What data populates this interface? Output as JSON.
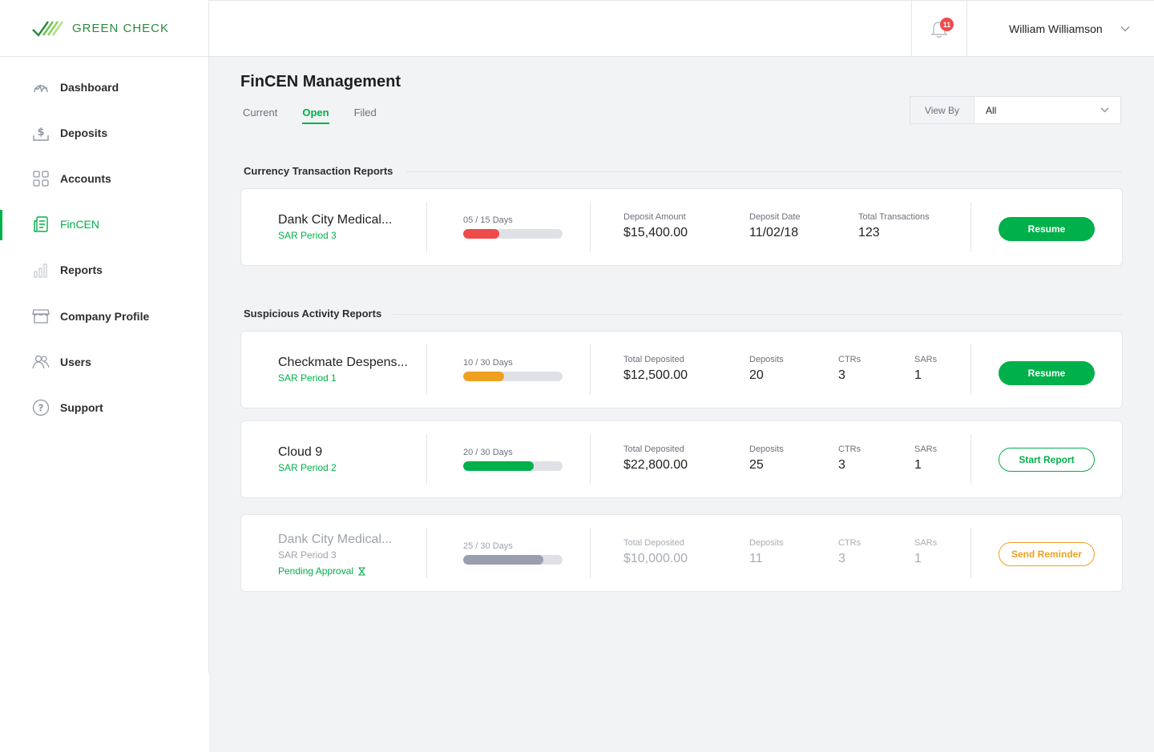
{
  "brand": {
    "name": "GREEN CHECK"
  },
  "sidebar": {
    "items": [
      {
        "label": "Dashboard",
        "icon": "dashboard-icon"
      },
      {
        "label": "Deposits",
        "icon": "deposits-icon"
      },
      {
        "label": "Accounts",
        "icon": "accounts-icon"
      },
      {
        "label": "FinCEN",
        "icon": "fincen-icon",
        "active": true
      },
      {
        "label": "Reports",
        "icon": "reports-icon"
      },
      {
        "label": "Company Profile",
        "icon": "store-icon"
      },
      {
        "label": "Users",
        "icon": "users-icon"
      },
      {
        "label": "Support",
        "icon": "support-icon"
      }
    ]
  },
  "header": {
    "notification_count": "11",
    "user_name": "William Williamson"
  },
  "page": {
    "title": "FinCEN Management",
    "tabs": [
      {
        "label": "Current"
      },
      {
        "label": "Open",
        "active": true
      },
      {
        "label": "Filed"
      }
    ],
    "view_by": {
      "label": "View By",
      "value": "All"
    }
  },
  "ctr": {
    "title": "Currency Transaction Reports",
    "cards": [
      {
        "name": "Dank City Medical...",
        "period": "SAR Period 3",
        "progress_label": "05 / 15 Days",
        "progress": 0.36,
        "bar_color": "#ef4b4b",
        "stats": [
          {
            "label": "Deposit Amount",
            "value": "$15,400.00"
          },
          {
            "label": "Deposit Date",
            "value": "11/02/18"
          },
          {
            "label": "Total Transactions",
            "value": "123"
          }
        ],
        "action": "Resume"
      }
    ]
  },
  "sar": {
    "title": "Suspicious Activity Reports",
    "cards": [
      {
        "name": "Checkmate Despens...",
        "period": "SAR Period 1",
        "progress_label": "10 / 30 Days",
        "progress": 0.41,
        "bar_color": "#f0a020",
        "stats": [
          {
            "label": "Total Deposited",
            "value": "$12,500.00"
          },
          {
            "label": "Deposits",
            "value": "20"
          },
          {
            "label": "CTRs",
            "value": "3"
          },
          {
            "label": "SARs",
            "value": "1"
          }
        ],
        "action": "Resume"
      },
      {
        "name": "Cloud 9",
        "period": "SAR Period 2",
        "progress_label": "20 / 30 Days",
        "progress": 0.71,
        "bar_color": "#00b04a",
        "stats": [
          {
            "label": "Total Deposited",
            "value": "$22,800.00"
          },
          {
            "label": "Deposits",
            "value": "25"
          },
          {
            "label": "CTRs",
            "value": "3"
          },
          {
            "label": "SARs",
            "value": "1"
          }
        ],
        "action": "Start Report"
      },
      {
        "name": "Dank City Medical...",
        "period": "SAR Period 3",
        "status": "Pending Approval",
        "progress_label": "25 / 30 Days",
        "progress": 0.81,
        "bar_color": "#9a9fb0",
        "stats": [
          {
            "label": "Total Deposited",
            "value": "$10,000.00"
          },
          {
            "label": "Deposits",
            "value": "11"
          },
          {
            "label": "CTRs",
            "value": "3"
          },
          {
            "label": "SARs",
            "value": "1"
          }
        ],
        "action": "Send Reminder"
      }
    ]
  }
}
